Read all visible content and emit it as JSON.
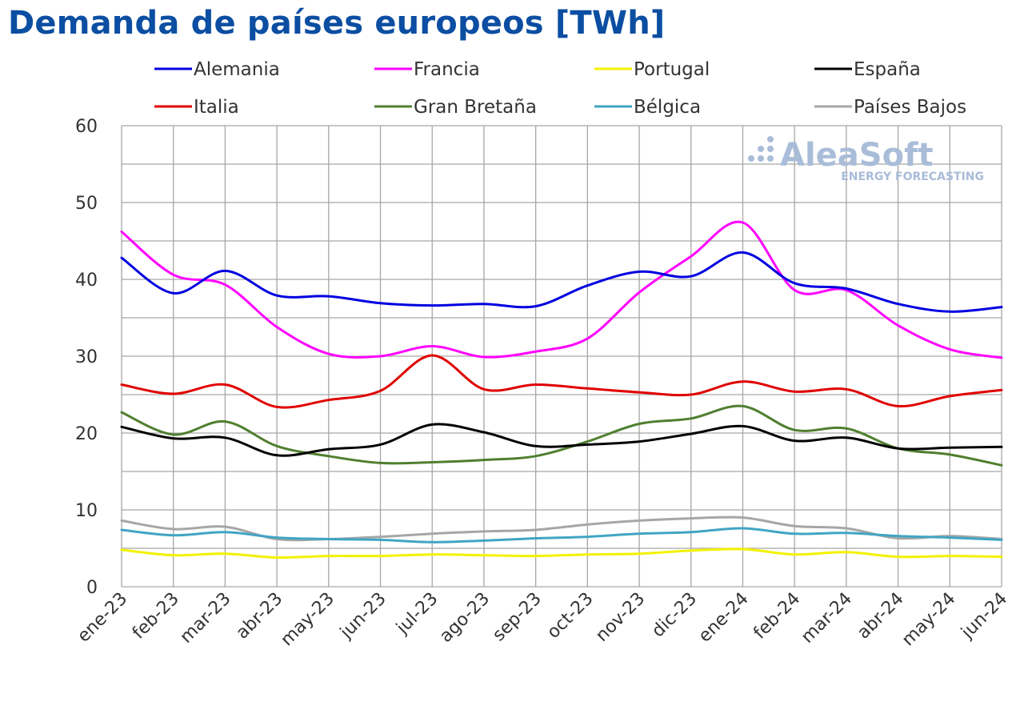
{
  "chart_data": {
    "type": "line",
    "title": "Demanda de países europeos [TWh]",
    "xlabel": "",
    "ylabel": "",
    "ylim": [
      0,
      60
    ],
    "yticks": [
      0,
      10,
      20,
      30,
      40,
      50,
      60
    ],
    "grid": true,
    "legend_position": "top",
    "categories": [
      "ene-23",
      "feb-23",
      "mar-23",
      "abr-23",
      "may-23",
      "jun-23",
      "jul-23",
      "ago-23",
      "sep-23",
      "oct-23",
      "nov-23",
      "dic-23",
      "ene-24",
      "feb-24",
      "mar-24",
      "abr-24",
      "may-24",
      "jun-24"
    ],
    "series": [
      {
        "name": "Alemania",
        "color": "#0000e0",
        "values": [
          42.8,
          38.2,
          41.1,
          37.9,
          37.8,
          36.9,
          36.6,
          36.8,
          36.5,
          39.2,
          41.0,
          40.4,
          43.5,
          39.5,
          38.8,
          36.8,
          35.8,
          36.4
        ]
      },
      {
        "name": "Francia",
        "color": "#ff00ff",
        "values": [
          46.2,
          40.6,
          39.3,
          33.8,
          30.3,
          30.0,
          31.3,
          29.9,
          30.6,
          32.3,
          38.3,
          43.0,
          47.4,
          38.6,
          38.6,
          34.0,
          30.9,
          29.8
        ]
      },
      {
        "name": "Portugal",
        "color": "#f2f200",
        "values": [
          4.8,
          4.1,
          4.3,
          3.8,
          4.0,
          4.0,
          4.2,
          4.1,
          4.0,
          4.2,
          4.3,
          4.7,
          4.9,
          4.2,
          4.5,
          3.9,
          4.0,
          3.9
        ]
      },
      {
        "name": "España",
        "color": "#000000",
        "values": [
          20.8,
          19.3,
          19.4,
          17.1,
          17.9,
          18.5,
          21.1,
          20.1,
          18.3,
          18.5,
          18.9,
          19.9,
          20.9,
          19.0,
          19.4,
          18.0,
          18.1,
          18.2
        ]
      },
      {
        "name": "Italia",
        "color": "#e00000",
        "values": [
          26.3,
          25.1,
          26.3,
          23.4,
          24.3,
          25.5,
          30.1,
          25.7,
          26.3,
          25.8,
          25.3,
          25.0,
          26.7,
          25.4,
          25.7,
          23.5,
          24.8,
          25.6
        ]
      },
      {
        "name": "Gran Bretaña",
        "color": "#4f7f2f",
        "values": [
          22.7,
          19.8,
          21.5,
          18.3,
          17.0,
          16.1,
          16.2,
          16.5,
          17.0,
          18.9,
          21.2,
          21.9,
          23.5,
          20.4,
          20.6,
          18.0,
          17.2,
          15.8
        ]
      },
      {
        "name": "Bélgica",
        "color": "#41a5c4",
        "values": [
          7.4,
          6.7,
          7.1,
          6.4,
          6.2,
          6.1,
          5.8,
          6.0,
          6.3,
          6.5,
          6.9,
          7.1,
          7.6,
          6.9,
          7.0,
          6.6,
          6.4,
          6.1
        ]
      },
      {
        "name": "Países Bajos",
        "color": "#a6a6a6",
        "values": [
          8.6,
          7.5,
          7.8,
          6.2,
          6.2,
          6.5,
          6.9,
          7.2,
          7.4,
          8.1,
          8.6,
          8.9,
          9.0,
          7.9,
          7.6,
          6.3,
          6.6,
          6.2
        ]
      }
    ]
  },
  "watermark": {
    "brand": "AleaSoft",
    "tagline": "ENERGY FORECASTING"
  }
}
